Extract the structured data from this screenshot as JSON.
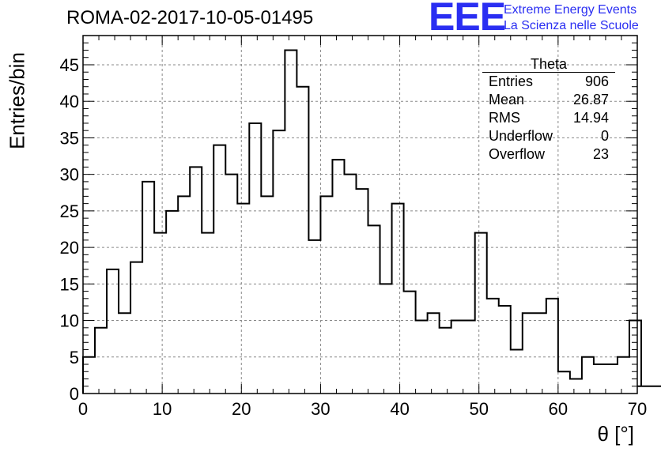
{
  "header": {
    "title": "ROMA-02-2017-10-05-01495",
    "logo_letters": "EEE",
    "logo_line1": "Extreme Energy Events",
    "logo_line2": "La Scienza nelle Scuole"
  },
  "stats": {
    "name": "Theta",
    "rows": [
      {
        "label": "Entries",
        "value": "906"
      },
      {
        "label": "Mean",
        "value": "26.87"
      },
      {
        "label": "RMS",
        "value": "14.94"
      },
      {
        "label": "Underflow",
        "value": "0"
      },
      {
        "label": "Overflow",
        "value": "23"
      }
    ]
  },
  "chart_data": {
    "type": "bar",
    "style": "step-histogram",
    "xlabel": "θ [°]",
    "ylabel": "Entries/bin",
    "xlim": [
      0,
      70
    ],
    "ylim": [
      0,
      49
    ],
    "xticks": [
      0,
      10,
      20,
      30,
      40,
      50,
      60,
      70
    ],
    "yticks": [
      0,
      5,
      10,
      15,
      20,
      25,
      30,
      35,
      40,
      45
    ],
    "bin_width": 1.5,
    "bin_start": 0,
    "values": [
      5,
      9,
      17,
      11,
      18,
      29,
      22,
      25,
      27,
      31,
      22,
      34,
      30,
      26,
      37,
      27,
      36,
      47,
      42,
      21,
      27,
      32,
      30,
      28,
      23,
      15,
      26,
      14,
      10,
      11,
      9,
      10,
      10,
      22,
      13,
      12,
      6,
      11,
      11,
      13,
      3,
      2,
      5,
      4,
      4,
      5,
      10,
      1,
      1
    ],
    "grid": true,
    "line_color": "#000000"
  }
}
